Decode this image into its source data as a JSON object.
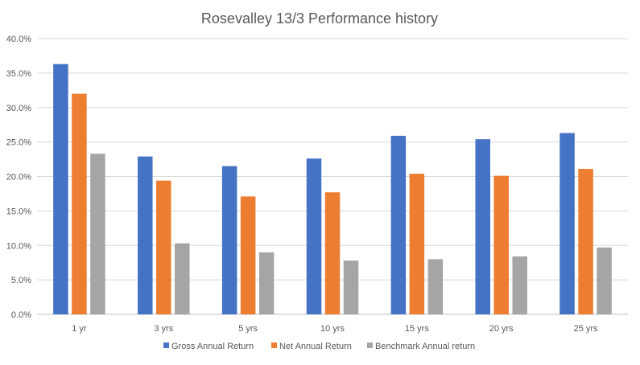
{
  "chart_data": {
    "type": "bar",
    "title": "Rosevalley 13/3 Performance history",
    "xlabel": "",
    "ylabel": "",
    "categories": [
      "1 yr",
      "3 yrs",
      "5 yrs",
      "10 yrs",
      "15 yrs",
      "20 yrs",
      "25 yrs"
    ],
    "series": [
      {
        "name": "Gross Annual Return",
        "color": "#4472C4",
        "values": [
          36.3,
          22.9,
          21.5,
          22.6,
          25.9,
          25.4,
          26.3
        ]
      },
      {
        "name": "Net Annual Return",
        "color": "#ED7D31",
        "values": [
          32.0,
          19.4,
          17.1,
          17.7,
          20.4,
          20.1,
          21.1
        ]
      },
      {
        "name": "Benchmark Annual return",
        "color": "#A5A5A5",
        "values": [
          23.3,
          10.3,
          9.0,
          7.8,
          8.0,
          8.4,
          9.7
        ]
      }
    ],
    "ylim": [
      0,
      40
    ],
    "yticks": [
      "0.0%",
      "5.0%",
      "10.0%",
      "15.0%",
      "20.0%",
      "25.0%",
      "30.0%",
      "35.0%",
      "40.0%"
    ],
    "ytick_values": [
      0,
      5,
      10,
      15,
      20,
      25,
      30,
      35,
      40
    ],
    "grid": true,
    "legend_position": "bottom"
  }
}
